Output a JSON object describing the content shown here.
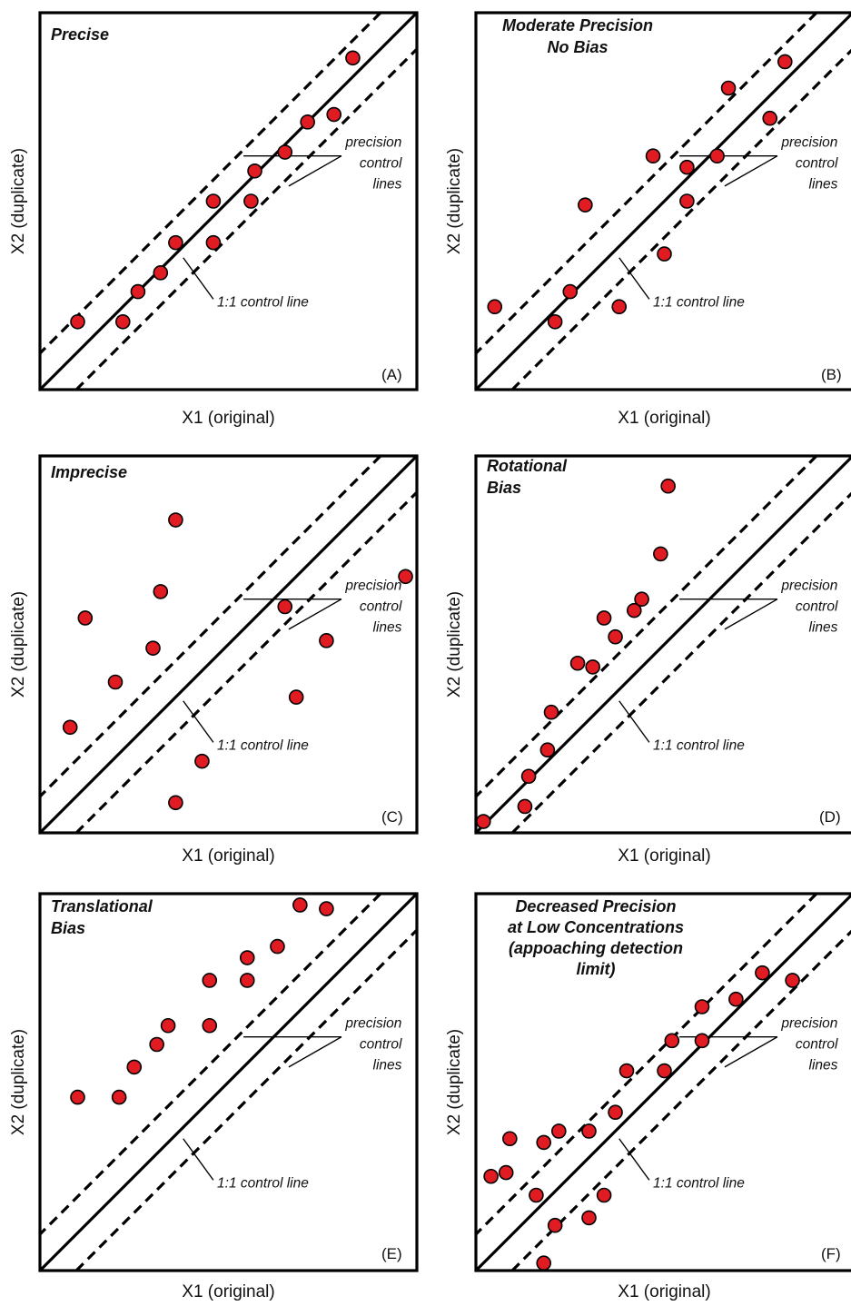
{
  "chart_data": [
    {
      "type": "scatter",
      "panel_tag": "(A)",
      "title_lines": [
        "Precise"
      ],
      "xlabel": "X1  (original)",
      "ylabel": "X2  (duplicate)",
      "annotations": {
        "precision": [
          "precision",
          "control",
          "lines"
        ],
        "one_to_one": "1:1 control line"
      },
      "x": [
        10,
        22,
        26,
        32,
        36,
        46,
        46,
        56,
        57,
        65,
        71,
        78,
        83
      ],
      "y": [
        18,
        18,
        26,
        31,
        39,
        39,
        50,
        50,
        58,
        63,
        71,
        73,
        88
      ]
    },
    {
      "type": "scatter",
      "panel_tag": "(B)",
      "title_lines": [
        "Moderate Precision",
        "No Bias"
      ],
      "xlabel": "X1  (original)",
      "ylabel": "X2  (duplicate)",
      "annotations": {
        "precision": [
          "precision",
          "control",
          "lines"
        ],
        "one_to_one": "1:1 control line"
      },
      "x": [
        5,
        21,
        25,
        29,
        38,
        50,
        47,
        56,
        56,
        64,
        67,
        78,
        82
      ],
      "y": [
        22,
        18,
        26,
        49,
        22,
        36,
        62,
        50,
        59,
        62,
        80,
        72,
        87
      ]
    },
    {
      "type": "scatter",
      "panel_tag": "(C)",
      "title_lines": [
        "Imprecise"
      ],
      "xlabel": "X1  (original)",
      "ylabel": "X2  (duplicate)",
      "annotations": {
        "precision": [
          "precision",
          "control",
          "lines"
        ],
        "one_to_one": "1:1 control line"
      },
      "x": [
        8,
        12,
        20,
        30,
        32,
        36,
        36,
        43,
        65,
        68,
        76,
        97
      ],
      "y": [
        28,
        57,
        40,
        49,
        64,
        8,
        83,
        19,
        60,
        36,
        51,
        68
      ]
    },
    {
      "type": "scatter",
      "panel_tag": "(D)",
      "title_lines": [
        "Rotational",
        "Bias"
      ],
      "xlabel": "X1  (original)",
      "ylabel": "X2  (duplicate)",
      "annotations": {
        "precision": [
          "precision",
          "control",
          "lines"
        ],
        "one_to_one": "1:1 control line"
      },
      "x": [
        2,
        13,
        14,
        19,
        20,
        27,
        31,
        34,
        37,
        42,
        44,
        49,
        51
      ],
      "y": [
        3,
        7,
        15,
        22,
        32,
        45,
        44,
        57,
        52,
        59,
        62,
        74,
        92
      ]
    },
    {
      "type": "scatter",
      "panel_tag": "(E)",
      "title_lines": [
        "Translational",
        "Bias"
      ],
      "xlabel": "X1  (original)",
      "ylabel": "X2  (duplicate)",
      "annotations": {
        "precision": [
          "precision",
          "control",
          "lines"
        ],
        "one_to_one": "1:1 control line"
      },
      "x": [
        10,
        21,
        25,
        31,
        34,
        45,
        45,
        55,
        55,
        63,
        69,
        76
      ],
      "y": [
        46,
        46,
        54,
        60,
        65,
        65,
        77,
        77,
        83,
        86,
        97,
        96
      ]
    },
    {
      "type": "scatter",
      "panel_tag": "(F)",
      "title_lines": [
        "Decreased Precision",
        "at Low Concentrations",
        "(appoaching detection",
        "limit)"
      ],
      "xlabel": "X1  (original)",
      "ylabel": "X2  (duplicate)",
      "annotations": {
        "precision": [
          "precision",
          "control",
          "lines"
        ],
        "one_to_one": "1:1 control line"
      },
      "x": [
        4,
        8,
        9,
        16,
        18,
        18,
        22,
        21,
        30,
        30,
        34,
        37,
        40,
        50,
        52,
        60,
        60,
        69,
        76,
        84
      ],
      "y": [
        25,
        26,
        35,
        20,
        2,
        34,
        37,
        12,
        14,
        37,
        20,
        42,
        53,
        53,
        61,
        61,
        70,
        72,
        79,
        77
      ]
    }
  ]
}
